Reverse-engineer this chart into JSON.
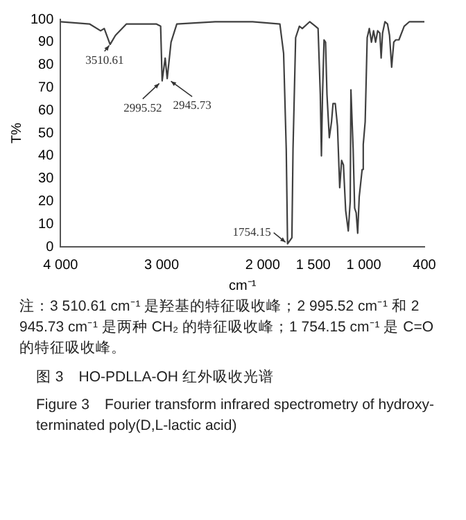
{
  "chart_data": {
    "type": "line",
    "xlabel": "cm⁻¹",
    "ylabel": "T%",
    "marker": "none",
    "x": [
      4000,
      3714,
      3604,
      3568,
      3510,
      3457,
      3348,
      3054,
      3010,
      2995,
      2965,
      2945,
      2907,
      2850,
      2470,
      2100,
      1830,
      1793,
      1767,
      1754,
      1711,
      1700,
      1674,
      1637,
      1608,
      1534,
      1478,
      1452,
      1430,
      1419,
      1408,
      1393,
      1378,
      1364,
      1341,
      1319,
      1304,
      1282,
      1260,
      1238,
      1219,
      1201,
      1179,
      1153,
      1134,
      1127,
      1105,
      1090,
      1075,
      1060,
      1045,
      1016,
      1005,
      986,
      966,
      945,
      924,
      903,
      883,
      862,
      841,
      828,
      814,
      790,
      765,
      745,
      724,
      703,
      683,
      652,
      600,
      548,
      400
    ],
    "series": [
      {
        "color": "#404040",
        "values": [
          99,
          98,
          95,
          96,
          89,
          93,
          98,
          98,
          97,
          73,
          83,
          74,
          90,
          98,
          99,
          99,
          98,
          85,
          43,
          1.3,
          4,
          43,
          92,
          97,
          96,
          99,
          97,
          96,
          67,
          40,
          67,
          91,
          90,
          67,
          48,
          55,
          63,
          63,
          53,
          26,
          38,
          36,
          16,
          7,
          20,
          69,
          43,
          17,
          15,
          6,
          22,
          34,
          45,
          55,
          92,
          96,
          90,
          95,
          90,
          95,
          94,
          83,
          94,
          99,
          98,
          93,
          79,
          90,
          91,
          91,
          97,
          99,
          99
        ]
      }
    ],
    "xlim": [
      4000,
      400
    ],
    "xticks": [
      {
        "value": 4000,
        "label": "4 000"
      },
      {
        "value": 3000,
        "label": "3 000"
      },
      {
        "value": 2000,
        "label": "2 000"
      },
      {
        "value": 1500,
        "label": "1 500"
      },
      {
        "value": 1000,
        "label": "1 000"
      },
      400
    ],
    "ylim": [
      0,
      100
    ],
    "yticks": [
      0,
      10,
      20,
      30,
      40,
      50,
      60,
      70,
      80,
      90,
      100
    ],
    "annotations": [
      {
        "text": "3510.61",
        "x": 3510,
        "y": 89
      },
      {
        "text": "2995.52",
        "x": 2995,
        "y": 73
      },
      {
        "text": "2945.73",
        "x": 2945,
        "y": 74
      },
      {
        "text": "1754.15",
        "x": 1754,
        "y": 1.3
      },
      "注：3 510.61 cm⁻¹ 是羟基的特征吸收峰；2 995.52 cm⁻¹ 和 2 945.73 cm⁻¹ 是两种 CH₂ 的特征吸收峰；1 754.15 cm⁻¹ 是 C=O 的特征吸收峰。",
      "图 3　HO-PDLLA-OH 红外吸收光谱",
      "Figure 3　Fourier transform infrared spectrometry of hydroxy-terminated poly(D,L-lactic acid)"
    ]
  }
}
